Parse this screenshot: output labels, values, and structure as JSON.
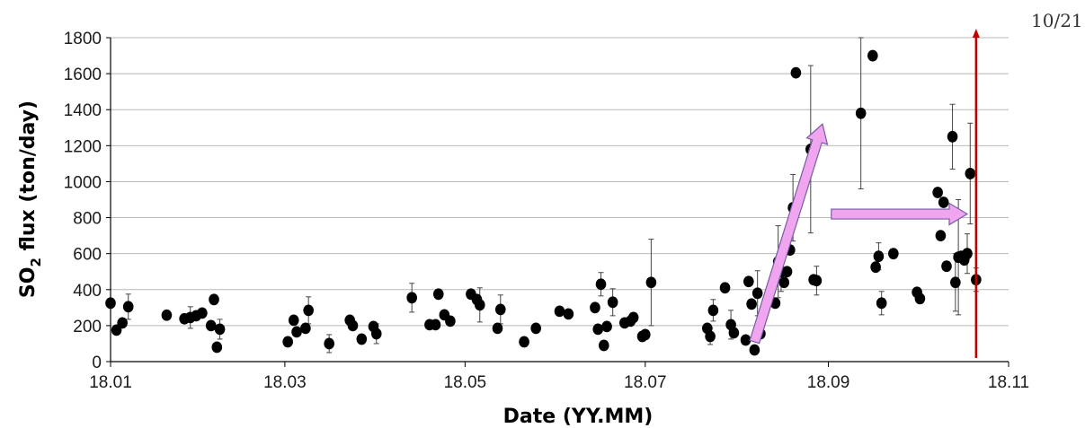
{
  "chart_data": {
    "type": "scatter",
    "xlabel": "Date (YY.MM)",
    "ylabel": "SO2 flux (ton/day)",
    "ylabel_parts": {
      "pre": "SO",
      "sub": "2",
      "post": " flux  (ton/day)"
    },
    "x_ticks": [
      "18.01",
      "18.03",
      "18.05",
      "18.07",
      "18.09",
      "18.11"
    ],
    "y_ticks": [
      0,
      200,
      400,
      600,
      800,
      1000,
      1200,
      1400,
      1600,
      1800
    ],
    "xlim": [
      "2018-01-01",
      "2018-11-01"
    ],
    "ylim": [
      0,
      1800
    ],
    "grid": "horizontal",
    "annotation_text": "10/21",
    "marker_date": "2018-10-21",
    "colors": {
      "points": "#000000",
      "marker_line": "#c00000",
      "arrow_fill": "#f0a6ee",
      "arrow_stroke": "#7a5aa8",
      "grid": "#b8b8b8"
    },
    "points": [
      {
        "x": "2018-01-01",
        "y": 325
      },
      {
        "x": "2018-01-03",
        "y": 175
      },
      {
        "x": "2018-01-05",
        "y": 215
      },
      {
        "x": "2018-01-07",
        "y": 305,
        "err": 70
      },
      {
        "x": "2018-01-20",
        "y": 258
      },
      {
        "x": "2018-01-26",
        "y": 238
      },
      {
        "x": "2018-01-28",
        "y": 245,
        "err": 60
      },
      {
        "x": "2018-01-30",
        "y": 255
      },
      {
        "x": "2018-02-01",
        "y": 270
      },
      {
        "x": "2018-02-04",
        "y": 200
      },
      {
        "x": "2018-02-05",
        "y": 345
      },
      {
        "x": "2018-02-06",
        "y": 80
      },
      {
        "x": "2018-02-07",
        "y": 180,
        "err": 55
      },
      {
        "x": "2018-03-02",
        "y": 110
      },
      {
        "x": "2018-03-04",
        "y": 230
      },
      {
        "x": "2018-03-05",
        "y": 165
      },
      {
        "x": "2018-03-08",
        "y": 185
      },
      {
        "x": "2018-03-09",
        "y": 285,
        "err": 75
      },
      {
        "x": "2018-03-16",
        "y": 100,
        "err": 50
      },
      {
        "x": "2018-03-23",
        "y": 230
      },
      {
        "x": "2018-03-24",
        "y": 200
      },
      {
        "x": "2018-03-27",
        "y": 125
      },
      {
        "x": "2018-03-31",
        "y": 195
      },
      {
        "x": "2018-04-01",
        "y": 155,
        "err": 55
      },
      {
        "x": "2018-04-13",
        "y": 355,
        "err": 80
      },
      {
        "x": "2018-04-19",
        "y": 205
      },
      {
        "x": "2018-04-21",
        "y": 205
      },
      {
        "x": "2018-04-22",
        "y": 375
      },
      {
        "x": "2018-04-24",
        "y": 260
      },
      {
        "x": "2018-04-26",
        "y": 225
      },
      {
        "x": "2018-05-03",
        "y": 375
      },
      {
        "x": "2018-05-05",
        "y": 345
      },
      {
        "x": "2018-05-06",
        "y": 315,
        "err": 95
      },
      {
        "x": "2018-05-12",
        "y": 185
      },
      {
        "x": "2018-05-13",
        "y": 290,
        "err": 80
      },
      {
        "x": "2018-05-21",
        "y": 110
      },
      {
        "x": "2018-05-25",
        "y": 185
      },
      {
        "x": "2018-06-02",
        "y": 280
      },
      {
        "x": "2018-06-05",
        "y": 265
      },
      {
        "x": "2018-06-14",
        "y": 300
      },
      {
        "x": "2018-06-15",
        "y": 180
      },
      {
        "x": "2018-06-16",
        "y": 430,
        "err": 65
      },
      {
        "x": "2018-06-17",
        "y": 90
      },
      {
        "x": "2018-06-18",
        "y": 195
      },
      {
        "x": "2018-06-20",
        "y": 330,
        "err": 75
      },
      {
        "x": "2018-06-24",
        "y": 215
      },
      {
        "x": "2018-06-26",
        "y": 225
      },
      {
        "x": "2018-06-27",
        "y": 245
      },
      {
        "x": "2018-06-30",
        "y": 140
      },
      {
        "x": "2018-07-01",
        "y": 150
      },
      {
        "x": "2018-07-03",
        "y": 440,
        "err": 240
      },
      {
        "x": "2018-07-22",
        "y": 185
      },
      {
        "x": "2018-07-23",
        "y": 140,
        "err": 45
      },
      {
        "x": "2018-07-24",
        "y": 285,
        "err": 60
      },
      {
        "x": "2018-07-28",
        "y": 410
      },
      {
        "x": "2018-07-30",
        "y": 205,
        "err": 80
      },
      {
        "x": "2018-07-31",
        "y": 160
      },
      {
        "x": "2018-08-04",
        "y": 120
      },
      {
        "x": "2018-08-05",
        "y": 445
      },
      {
        "x": "2018-08-06",
        "y": 320
      },
      {
        "x": "2018-08-07",
        "y": 65
      },
      {
        "x": "2018-08-08",
        "y": 380,
        "err": 125
      },
      {
        "x": "2018-08-09",
        "y": 155
      },
      {
        "x": "2018-08-14",
        "y": 325
      },
      {
        "x": "2018-08-15",
        "y": 555,
        "err": 200
      },
      {
        "x": "2018-08-16",
        "y": 500,
        "err": 110
      },
      {
        "x": "2018-08-17",
        "y": 440
      },
      {
        "x": "2018-08-18",
        "y": 500
      },
      {
        "x": "2018-08-19",
        "y": 620
      },
      {
        "x": "2018-08-20",
        "y": 855,
        "err": 185
      },
      {
        "x": "2018-08-21",
        "y": 1605
      },
      {
        "x": "2018-08-23",
        "y": 955
      },
      {
        "x": "2018-08-26",
        "y": 1180,
        "err": 465
      },
      {
        "x": "2018-08-27",
        "y": 455
      },
      {
        "x": "2018-08-28",
        "y": 450,
        "err": 80
      },
      {
        "x": "2018-09-12",
        "y": 1380,
        "err": 420
      },
      {
        "x": "2018-09-16",
        "y": 1700
      },
      {
        "x": "2018-09-17",
        "y": 525
      },
      {
        "x": "2018-09-18",
        "y": 585,
        "err": 75
      },
      {
        "x": "2018-09-19",
        "y": 325,
        "err": 65
      },
      {
        "x": "2018-09-23",
        "y": 600
      },
      {
        "x": "2018-10-01",
        "y": 385
      },
      {
        "x": "2018-10-02",
        "y": 350
      },
      {
        "x": "2018-10-08",
        "y": 940
      },
      {
        "x": "2018-10-09",
        "y": 700
      },
      {
        "x": "2018-10-10",
        "y": 885
      },
      {
        "x": "2018-10-11",
        "y": 530
      },
      {
        "x": "2018-10-13",
        "y": 1250,
        "err": 180
      },
      {
        "x": "2018-10-14",
        "y": 440,
        "err": 160
      },
      {
        "x": "2018-10-15",
        "y": 580,
        "err": 320
      },
      {
        "x": "2018-10-16",
        "y": 585
      },
      {
        "x": "2018-10-17",
        "y": 565
      },
      {
        "x": "2018-10-18",
        "y": 600,
        "err": 110
      },
      {
        "x": "2018-10-19",
        "y": 1045,
        "err": 280
      },
      {
        "x": "2018-10-21",
        "y": 455,
        "err": 65
      }
    ],
    "arrows": [
      {
        "from": {
          "x": "2018-08-07",
          "y": 110
        },
        "to": {
          "x": "2018-08-30",
          "y": 1320
        }
      },
      {
        "from": {
          "x": "2018-09-02",
          "y": 820
        },
        "to": {
          "x": "2018-10-18",
          "y": 820
        }
      }
    ]
  }
}
